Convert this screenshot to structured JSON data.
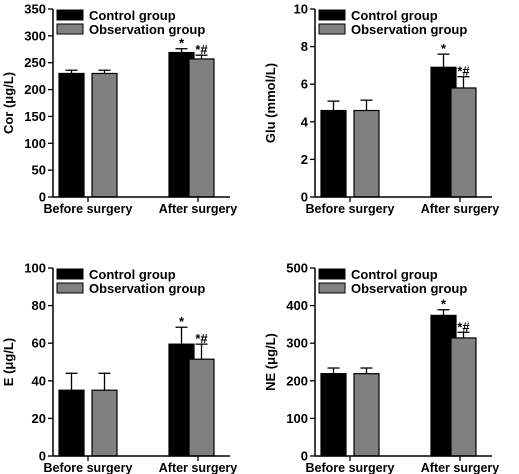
{
  "colors": {
    "control": "#000000",
    "observation": "#808080",
    "axis": "#000000"
  },
  "chart_data": [
    {
      "type": "bar",
      "categories": [
        "Before surgery",
        "After surgery"
      ],
      "ylabel": "Cor (μg/L)",
      "ylim": [
        0,
        350
      ],
      "yticks": [
        "0",
        "50",
        "100",
        "150",
        "200",
        "250",
        "300",
        "350"
      ],
      "series": [
        {
          "name": "Control group",
          "values": [
            230,
            269
          ],
          "errors": [
            6,
            7
          ],
          "marks": [
            "",
            "*"
          ]
        },
        {
          "name": "Observation group",
          "values": [
            230,
            257
          ],
          "errors": [
            6,
            7
          ],
          "marks": [
            "",
            "*#"
          ]
        }
      ],
      "legend_position": "top-left",
      "grid": false
    },
    {
      "type": "bar",
      "categories": [
        "Before surgery",
        "After surgery"
      ],
      "ylabel": "Glu (mmol/L)",
      "ylim": [
        0,
        10
      ],
      "yticks": [
        "0",
        "2",
        "4",
        "6",
        "8",
        "10"
      ],
      "series": [
        {
          "name": "Control group",
          "values": [
            4.6,
            6.9
          ],
          "errors": [
            0.5,
            0.7
          ],
          "marks": [
            "",
            "*"
          ]
        },
        {
          "name": "Observation group",
          "values": [
            4.6,
            5.8
          ],
          "errors": [
            0.55,
            0.6
          ],
          "marks": [
            "",
            "*#"
          ]
        }
      ],
      "legend_position": "top-left",
      "grid": false
    },
    {
      "type": "bar",
      "categories": [
        "Before surgery",
        "After surgery"
      ],
      "ylabel": "E (μg/L)",
      "ylim": [
        0,
        100
      ],
      "yticks": [
        "0",
        "20",
        "40",
        "60",
        "80",
        "100"
      ],
      "series": [
        {
          "name": "Control group",
          "values": [
            35,
            59.5
          ],
          "errors": [
            9,
            9
          ],
          "marks": [
            "",
            "*"
          ]
        },
        {
          "name": "Observation group",
          "values": [
            35,
            51.5
          ],
          "errors": [
            9,
            8
          ],
          "marks": [
            "",
            "*#"
          ]
        }
      ],
      "legend_position": "top-left",
      "grid": false
    },
    {
      "type": "bar",
      "categories": [
        "Before surgery",
        "After surgery"
      ],
      "ylabel": "NE (μg/L)",
      "ylim": [
        0,
        500
      ],
      "yticks": [
        "0",
        "100",
        "200",
        "300",
        "400",
        "500"
      ],
      "series": [
        {
          "name": "Control group",
          "values": [
            219,
            374
          ],
          "errors": [
            15,
            15
          ],
          "marks": [
            "",
            "*"
          ]
        },
        {
          "name": "Observation group",
          "values": [
            219,
            314
          ],
          "errors": [
            15,
            15
          ],
          "marks": [
            "",
            "*#"
          ]
        }
      ],
      "legend_position": "top-left",
      "grid": false
    }
  ]
}
